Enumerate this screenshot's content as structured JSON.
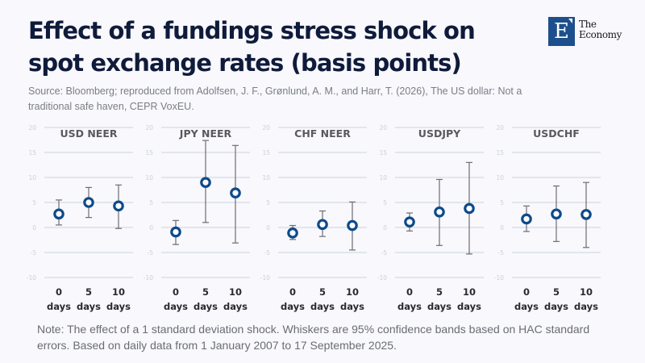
{
  "header": {
    "title": "Effect of a fundings stress shock on spot exchange rates (basis points)",
    "source": "Source: Bloomberg; reproduced from Adolfsen, J. F., Grønlund, A. M., and Harr, T. (2026), The US dollar: Not a traditional safe haven, CEPR VoxEU."
  },
  "logo": {
    "letter": "E",
    "line1": "The",
    "line2": "Economy",
    "color": "#1d4f8c"
  },
  "note": "Note: The effect of a 1 standard deviation shock. Whiskers are 95% confidence bands based on HAC standard errors. Based on daily data from 1 January 2007 to 17 September 2025.",
  "colors": {
    "marker": "#0d4a8a",
    "whisker": "#6d6d72",
    "grid": "#cdd4de",
    "tick_label": "#c9d2de",
    "panel_title": "#5a5a5e",
    "category_label": "#2b2b2e"
  },
  "chart_data": {
    "type": "scatter",
    "subtype": "point-with-error-bars, small multiples",
    "title": "Effect of a fundings stress shock on spot exchange rates (basis points)",
    "xlabel": "",
    "ylabel": "basis points",
    "ylim": [
      -10,
      20
    ],
    "yticks": [
      20,
      15,
      10,
      5,
      0,
      -5,
      -10
    ],
    "grid": true,
    "legend": "none",
    "categories": [
      {
        "line1": "0",
        "line2": "days"
      },
      {
        "line1": "5",
        "line2": "days"
      },
      {
        "line1": "10",
        "line2": "days"
      }
    ],
    "panels": [
      {
        "name": "USD NEER",
        "values": [
          2.7,
          5.0,
          4.3
        ],
        "lower": [
          0.5,
          2.0,
          -0.2
        ],
        "upper": [
          5.5,
          8.0,
          8.5
        ]
      },
      {
        "name": "JPY NEER",
        "values": [
          -0.9,
          9.0,
          6.9
        ],
        "lower": [
          -3.4,
          1.0,
          -3.1
        ],
        "upper": [
          1.4,
          17.4,
          16.4
        ]
      },
      {
        "name": "CHF NEER",
        "values": [
          -1.1,
          0.6,
          0.4
        ],
        "lower": [
          -2.4,
          -1.8,
          -4.5
        ],
        "upper": [
          0.4,
          3.3,
          5.1
        ]
      },
      {
        "name": "USDJPY",
        "values": [
          1.1,
          3.1,
          3.8
        ],
        "lower": [
          -0.7,
          -3.6,
          -5.3
        ],
        "upper": [
          2.9,
          9.6,
          13.0
        ]
      },
      {
        "name": "USDCHF",
        "values": [
          1.7,
          2.7,
          2.6
        ],
        "lower": [
          -0.8,
          -2.8,
          -4.0
        ],
        "upper": [
          4.3,
          8.3,
          9.0
        ]
      }
    ]
  }
}
